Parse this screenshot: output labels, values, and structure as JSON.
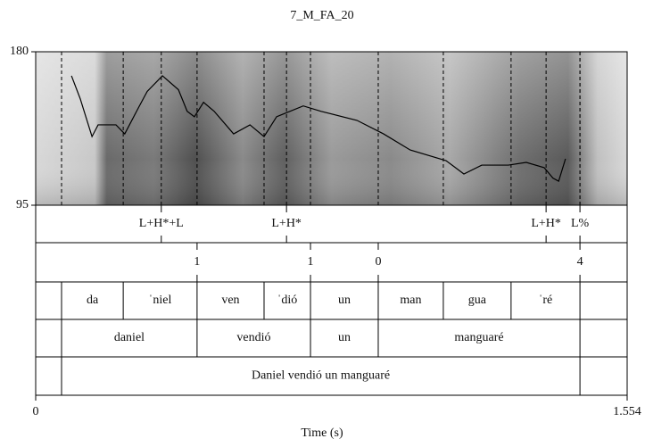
{
  "chart_data": {
    "type": "line",
    "title": "7_M_FA_20",
    "x_label": "Time (s)",
    "xlim": [
      0,
      1.554
    ],
    "xticks": [
      0,
      1.554
    ],
    "ylim": [
      95,
      180
    ],
    "yticks": [
      95,
      180
    ],
    "series": [
      {
        "color": "#000000",
        "x": [
          0.094,
          0.117,
          0.148,
          0.164,
          0.211,
          0.234,
          0.27,
          0.293,
          0.333,
          0.375,
          0.398,
          0.417,
          0.441,
          0.469,
          0.52,
          0.563,
          0.6,
          0.633,
          0.703,
          0.75,
          0.844,
          0.914,
          0.984,
          1.078,
          1.125,
          1.172,
          1.242,
          1.289,
          1.336,
          1.359,
          1.374,
          1.392
        ],
        "values": [
          166.7,
          154,
          133,
          139.5,
          139.5,
          134.5,
          149,
          158,
          166.7,
          159,
          147,
          144,
          152,
          147,
          134.5,
          139.5,
          133,
          144,
          150,
          147,
          142,
          134.5,
          125.6,
          119.7,
          112.3,
          117.2,
          117.2,
          118.7,
          115.8,
          110,
          108.3,
          120.7
        ]
      }
    ],
    "tiers": [
      {
        "kind": "point",
        "times": [
          0.33,
          0.659,
          1.341,
          1.43
        ],
        "labels": [
          "L+H*+L",
          "L+H*",
          "L+H*",
          "L%"
        ]
      },
      {
        "kind": "point",
        "times": [
          0.424,
          0.722,
          0.9,
          1.43
        ],
        "labels": [
          "1",
          "1",
          "0",
          "4"
        ]
      },
      {
        "kind": "interval",
        "boundaries": [
          0.068,
          0.23,
          0.424,
          0.6,
          0.722,
          0.9,
          1.071,
          1.249,
          1.43
        ],
        "labels": [
          "da",
          "ˈniel",
          "ven",
          "ˈdió",
          "un",
          "man",
          "gua",
          "ˈré"
        ]
      },
      {
        "kind": "interval",
        "boundaries": [
          0.068,
          0.424,
          0.722,
          0.9,
          1.43
        ],
        "labels": [
          "daniel",
          "vendió",
          "un",
          "manguaré"
        ]
      },
      {
        "kind": "interval",
        "boundaries": [
          0.068,
          1.43
        ],
        "labels": [
          "Daniel vendió un manguaré"
        ]
      }
    ]
  }
}
